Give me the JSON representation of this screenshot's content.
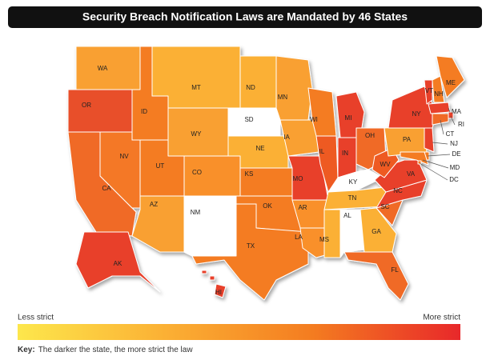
{
  "title": "Security Breach Notification Laws are Mandated by 46 States",
  "map": {
    "states": [
      {
        "label": "WA",
        "color": "#f9a030"
      },
      {
        "label": "OR",
        "color": "#e8502a"
      },
      {
        "label": "CA",
        "color": "#f06a25"
      },
      {
        "label": "NV",
        "color": "#f47828"
      },
      {
        "label": "ID",
        "color": "#f47c20"
      },
      {
        "label": "MT",
        "color": "#fbb034"
      },
      {
        "label": "WY",
        "color": "#f9a030"
      },
      {
        "label": "UT",
        "color": "#f47c20"
      },
      {
        "label": "CO",
        "color": "#f9902a"
      },
      {
        "label": "AZ",
        "color": "#f9a030"
      },
      {
        "label": "NM",
        "color": "#ffffff"
      },
      {
        "label": "ND",
        "color": "#fbb034"
      },
      {
        "label": "SD",
        "color": "#ffffff"
      },
      {
        "label": "NE",
        "color": "#fbb034"
      },
      {
        "label": "KS",
        "color": "#f47c20"
      },
      {
        "label": "OK",
        "color": "#f47c20"
      },
      {
        "label": "TX",
        "color": "#f47c20"
      },
      {
        "label": "MN",
        "color": "#f9a030"
      },
      {
        "label": "IA",
        "color": "#f9a030"
      },
      {
        "label": "MO",
        "color": "#e8412a"
      },
      {
        "label": "AR",
        "color": "#f9902a"
      },
      {
        "label": "LA",
        "color": "#f9902a"
      },
      {
        "label": "WI",
        "color": "#f47c20"
      },
      {
        "label": "IL",
        "color": "#ee5a24"
      },
      {
        "label": "MI",
        "color": "#e8412a"
      },
      {
        "label": "IN",
        "color": "#e8412a"
      },
      {
        "label": "OH",
        "color": "#f06a25"
      },
      {
        "label": "KY",
        "color": "#ffffff"
      },
      {
        "label": "TN",
        "color": "#fbb034"
      },
      {
        "label": "MS",
        "color": "#fbb034"
      },
      {
        "label": "AL",
        "color": "#ffffff"
      },
      {
        "label": "GA",
        "color": "#fbb034"
      },
      {
        "label": "FL",
        "color": "#f06a25"
      },
      {
        "label": "SC",
        "color": "#f06a25"
      },
      {
        "label": "NC",
        "color": "#e8412a"
      },
      {
        "label": "VA",
        "color": "#e8412a"
      },
      {
        "label": "WV",
        "color": "#ee5a24"
      },
      {
        "label": "PA",
        "color": "#f9a030"
      },
      {
        "label": "NY",
        "color": "#e8412a"
      },
      {
        "label": "VT",
        "color": "#e8412a"
      },
      {
        "label": "NH",
        "color": "#f47c20"
      },
      {
        "label": "ME",
        "color": "#f47c20"
      },
      {
        "label": "MA",
        "color": "#e8412a"
      },
      {
        "label": "RI",
        "color": "#e8412a"
      },
      {
        "label": "CT",
        "color": "#f06a25"
      },
      {
        "label": "NJ",
        "color": "#e8412a"
      },
      {
        "label": "DE",
        "color": "#f47c20"
      },
      {
        "label": "MD",
        "color": "#f47c20"
      },
      {
        "label": "DC",
        "color": "#f47c20"
      },
      {
        "label": "AK",
        "color": "#e8412a"
      },
      {
        "label": "HI",
        "color": "#e8412a"
      }
    ]
  },
  "legend": {
    "low": "Less strict",
    "high": "More strict",
    "colors": [
      "#fde74c",
      "#fbb034",
      "#f47c20",
      "#e8282a"
    ]
  },
  "key": {
    "label": "Key:",
    "text": "The darker the state, the more strict the law"
  }
}
